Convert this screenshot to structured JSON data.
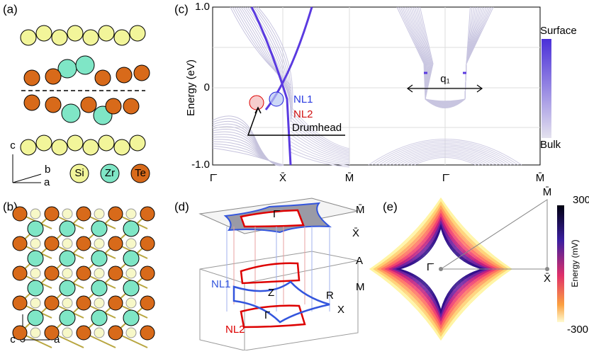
{
  "panels": {
    "a": {
      "label": "(a)",
      "legend": [
        "Si",
        "Zr",
        "Te"
      ],
      "axes": [
        "c",
        "b",
        "a"
      ]
    },
    "b": {
      "label": "(b)",
      "axes": [
        "b",
        "c",
        "a"
      ]
    },
    "c": {
      "label": "(c)",
      "y_label": "Energy (eV)",
      "yticks": [
        "1.0",
        "0",
        "-1.0"
      ],
      "xticks": [
        "Γ̄",
        "X̄",
        "M̄",
        "Γ̄",
        "M̄"
      ],
      "colorbar": [
        "Surface",
        "Bulk"
      ],
      "annotations": [
        "NL1",
        "NL2",
        "Drumhead",
        "q₁"
      ]
    },
    "d": {
      "label": "(d)",
      "top": [
        "M̄",
        "X̄",
        "Γ̄"
      ],
      "box": [
        "A",
        "M",
        "R",
        "Z",
        "Γ",
        "X"
      ],
      "lines": [
        "NL1",
        "NL2"
      ]
    },
    "e": {
      "label": "(e)",
      "points": [
        "M̄",
        "Γ̄",
        "X̄"
      ],
      "colorbar_label": "Energy (mV)",
      "colorbar_ticks": [
        "300",
        "-300"
      ]
    }
  }
}
